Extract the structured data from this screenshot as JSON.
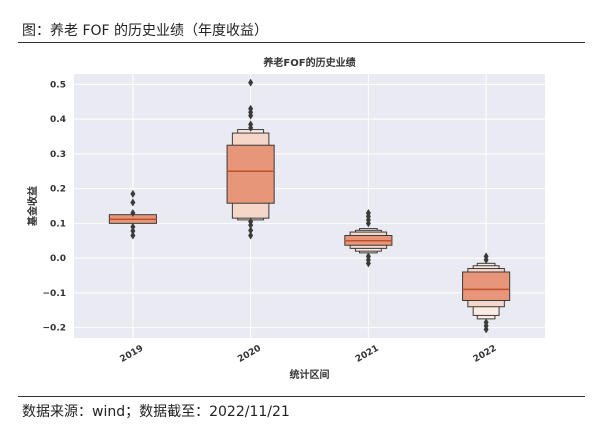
{
  "figure": {
    "caption": "图：养老 FOF 的历史业绩（年度收益）",
    "source": "数据来源：wind；数据截至：2022/11/21"
  },
  "colors": {
    "plot_bg": "#eaeaf2",
    "grid": "#ffffff",
    "box_main": "#e8967a",
    "box_light": "#f6d6c8",
    "box_lighter": "#fbebe3",
    "box_edge": "#3a3a3a",
    "median": "#c0502d"
  },
  "chart_data": {
    "type": "boxen",
    "title": "养老FOF的历史业绩",
    "xlabel": "统计区间",
    "ylabel": "基金收益",
    "ylim": [
      -0.23,
      0.53
    ],
    "yticks": [
      -0.2,
      -0.1,
      0.0,
      0.1,
      0.2,
      0.3,
      0.4,
      0.5
    ],
    "ytick_labels": [
      "−0.2",
      "−0.1",
      "0.0",
      "0.1",
      "0.2",
      "0.3",
      "0.4",
      "0.5"
    ],
    "grid": true,
    "categories": [
      "2019",
      "2020",
      "2021",
      "2022"
    ],
    "boxes": [
      {
        "median": 0.112,
        "levels": [
          [
            0.1,
            0.125
          ],
          [
            0.104,
            0.12
          ]
        ],
        "outliers": [
          0.185,
          0.16,
          0.13,
          0.09,
          0.078,
          0.065
        ]
      },
      {
        "median": 0.25,
        "levels": [
          [
            0.158,
            0.325
          ],
          [
            0.115,
            0.36
          ],
          [
            0.11,
            0.37
          ]
        ],
        "outliers": [
          0.505,
          0.43,
          0.42,
          0.41,
          0.385,
          0.375,
          0.105,
          0.095,
          0.08,
          0.065
        ]
      },
      {
        "median": 0.05,
        "levels": [
          [
            0.037,
            0.065
          ],
          [
            0.028,
            0.075
          ],
          [
            0.02,
            0.08
          ],
          [
            0.015,
            0.085
          ]
        ],
        "outliers": [
          0.13,
          0.12,
          0.11,
          0.1,
          0.005,
          -0.005,
          -0.015
        ]
      },
      {
        "median": -0.09,
        "levels": [
          [
            -0.122,
            -0.04
          ],
          [
            -0.14,
            -0.03
          ],
          [
            -0.165,
            -0.022
          ],
          [
            -0.175,
            -0.015
          ]
        ],
        "outliers": [
          0.005,
          -0.005,
          -0.185,
          -0.195,
          -0.205
        ]
      }
    ]
  }
}
